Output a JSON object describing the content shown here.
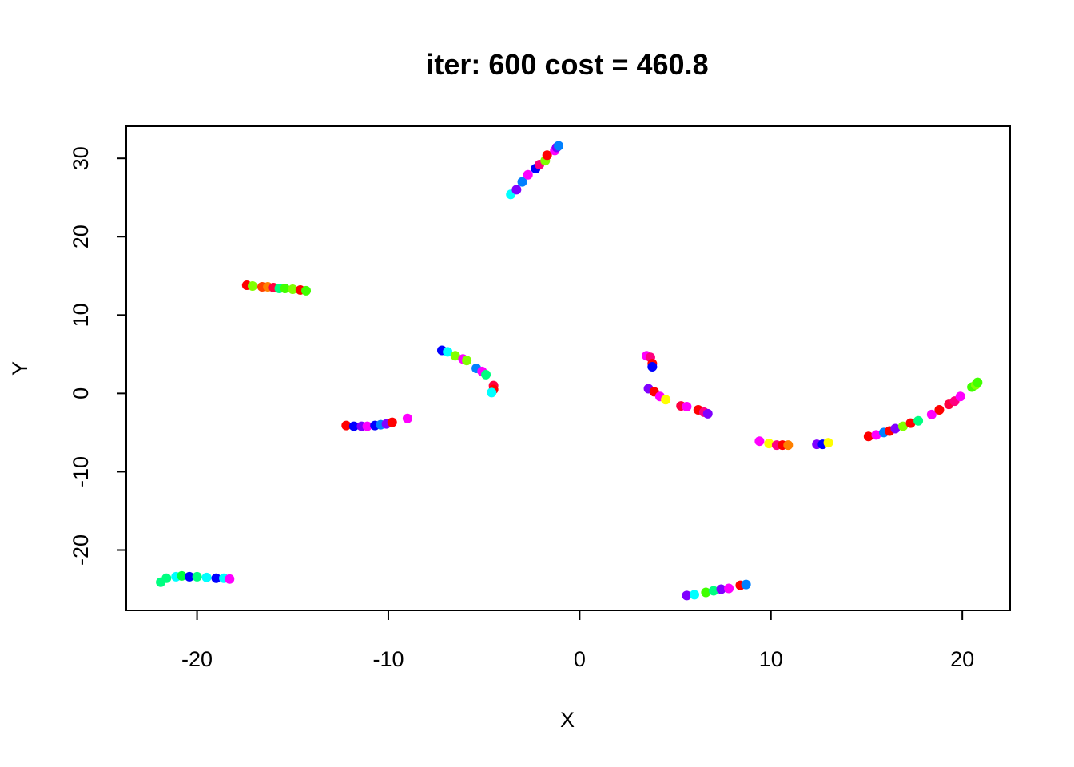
{
  "chart_data": {
    "type": "scatter",
    "title": "iter: 600 cost = 460.8",
    "xlabel": "X",
    "ylabel": "Y",
    "xlim": [
      -23.7,
      22.5
    ],
    "ylim": [
      -27.7,
      34.1
    ],
    "xticks": [
      -20,
      -10,
      0,
      10,
      20
    ],
    "yticks": [
      -20,
      -10,
      0,
      10,
      20,
      30
    ],
    "xtick_labels": [
      "-20",
      "-10",
      "0",
      "10",
      "20"
    ],
    "ytick_labels": [
      "-20",
      "-10",
      "0",
      "10",
      "20",
      "30"
    ],
    "grid": false,
    "legend": "none",
    "points": [
      {
        "x": -3.6,
        "y": 25.4,
        "color": "#00ffff"
      },
      {
        "x": -3.3,
        "y": 26.0,
        "color": "#8000ff"
      },
      {
        "x": -3.0,
        "y": 27.0,
        "color": "#0080ff"
      },
      {
        "x": -2.7,
        "y": 27.9,
        "color": "#ff00ff"
      },
      {
        "x": -2.3,
        "y": 28.7,
        "color": "#0000ff"
      },
      {
        "x": -2.1,
        "y": 29.2,
        "color": "#ff0080"
      },
      {
        "x": -1.8,
        "y": 29.7,
        "color": "#80ff00"
      },
      {
        "x": -1.7,
        "y": 30.4,
        "color": "#ff0000"
      },
      {
        "x": -1.3,
        "y": 31.0,
        "color": "#ff00ff"
      },
      {
        "x": -1.2,
        "y": 31.4,
        "color": "#8000ff"
      },
      {
        "x": -1.1,
        "y": 31.6,
        "color": "#0080ff"
      },
      {
        "x": -17.4,
        "y": 13.8,
        "color": "#ff0000"
      },
      {
        "x": -17.1,
        "y": 13.7,
        "color": "#80ff00"
      },
      {
        "x": -16.6,
        "y": 13.6,
        "color": "#ff4000"
      },
      {
        "x": -16.3,
        "y": 13.6,
        "color": "#ff8000"
      },
      {
        "x": -16.0,
        "y": 13.5,
        "color": "#ff0040"
      },
      {
        "x": -15.7,
        "y": 13.4,
        "color": "#00ff80"
      },
      {
        "x": -15.4,
        "y": 13.4,
        "color": "#40ff00"
      },
      {
        "x": -15.0,
        "y": 13.3,
        "color": "#80ff00"
      },
      {
        "x": -14.6,
        "y": 13.2,
        "color": "#ff0000"
      },
      {
        "x": -14.3,
        "y": 13.1,
        "color": "#40ff00"
      },
      {
        "x": -7.2,
        "y": 5.5,
        "color": "#0000ff"
      },
      {
        "x": -6.9,
        "y": 5.3,
        "color": "#00ffff"
      },
      {
        "x": -6.5,
        "y": 4.8,
        "color": "#80ff00"
      },
      {
        "x": -6.1,
        "y": 4.4,
        "color": "#ff00ff"
      },
      {
        "x": -5.9,
        "y": 4.2,
        "color": "#80ff00"
      },
      {
        "x": -5.4,
        "y": 3.2,
        "color": "#0080ff"
      },
      {
        "x": -5.1,
        "y": 2.8,
        "color": "#ff00ff"
      },
      {
        "x": -4.9,
        "y": 2.4,
        "color": "#00ff80"
      },
      {
        "x": -4.5,
        "y": 1.0,
        "color": "#ff0040"
      },
      {
        "x": -4.5,
        "y": 0.5,
        "color": "#ff0000"
      },
      {
        "x": -4.6,
        "y": 0.1,
        "color": "#00ffff"
      },
      {
        "x": -12.2,
        "y": -4.1,
        "color": "#ff0000"
      },
      {
        "x": -11.8,
        "y": -4.2,
        "color": "#0000ff"
      },
      {
        "x": -11.4,
        "y": -4.2,
        "color": "#8000ff"
      },
      {
        "x": -11.1,
        "y": -4.2,
        "color": "#ff00ff"
      },
      {
        "x": -10.7,
        "y": -4.1,
        "color": "#0000ff"
      },
      {
        "x": -10.4,
        "y": -4.0,
        "color": "#0080ff"
      },
      {
        "x": -10.1,
        "y": -3.9,
        "color": "#8000ff"
      },
      {
        "x": -9.8,
        "y": -3.7,
        "color": "#ff0000"
      },
      {
        "x": -9.0,
        "y": -3.2,
        "color": "#ff00ff"
      },
      {
        "x": 3.5,
        "y": 4.8,
        "color": "#ff00ff"
      },
      {
        "x": 3.7,
        "y": 4.6,
        "color": "#ff0080"
      },
      {
        "x": 3.8,
        "y": 3.8,
        "color": "#ff0000"
      },
      {
        "x": 3.8,
        "y": 3.4,
        "color": "#0000ff"
      },
      {
        "x": 3.6,
        "y": 0.6,
        "color": "#8000ff"
      },
      {
        "x": 3.9,
        "y": 0.2,
        "color": "#ff0000"
      },
      {
        "x": 4.2,
        "y": -0.4,
        "color": "#ff00ff"
      },
      {
        "x": 4.5,
        "y": -0.8,
        "color": "#ffff00"
      },
      {
        "x": 5.3,
        "y": -1.6,
        "color": "#ff0040"
      },
      {
        "x": 5.6,
        "y": -1.7,
        "color": "#ff00ff"
      },
      {
        "x": 6.2,
        "y": -2.1,
        "color": "#ff0000"
      },
      {
        "x": 6.5,
        "y": -2.4,
        "color": "#ff0080"
      },
      {
        "x": 6.7,
        "y": -2.6,
        "color": "#8000ff"
      },
      {
        "x": 9.4,
        "y": -6.1,
        "color": "#ff00ff"
      },
      {
        "x": 9.9,
        "y": -6.4,
        "color": "#ffff00"
      },
      {
        "x": 10.3,
        "y": -6.6,
        "color": "#ff0080"
      },
      {
        "x": 10.6,
        "y": -6.6,
        "color": "#ff0000"
      },
      {
        "x": 10.9,
        "y": -6.6,
        "color": "#ff8000"
      },
      {
        "x": 12.4,
        "y": -6.5,
        "color": "#8000ff"
      },
      {
        "x": 12.7,
        "y": -6.5,
        "color": "#0000ff"
      },
      {
        "x": 13.0,
        "y": -6.3,
        "color": "#ffff00"
      },
      {
        "x": 15.1,
        "y": -5.5,
        "color": "#ff0000"
      },
      {
        "x": 15.5,
        "y": -5.3,
        "color": "#ff00ff"
      },
      {
        "x": 15.9,
        "y": -5.0,
        "color": "#0080ff"
      },
      {
        "x": 16.2,
        "y": -4.8,
        "color": "#ff0000"
      },
      {
        "x": 16.5,
        "y": -4.5,
        "color": "#8000ff"
      },
      {
        "x": 16.9,
        "y": -4.2,
        "color": "#80ff00"
      },
      {
        "x": 17.3,
        "y": -3.8,
        "color": "#ff0000"
      },
      {
        "x": 17.7,
        "y": -3.5,
        "color": "#00ff80"
      },
      {
        "x": 18.4,
        "y": -2.7,
        "color": "#ff00ff"
      },
      {
        "x": 18.8,
        "y": -2.1,
        "color": "#ff0000"
      },
      {
        "x": 19.3,
        "y": -1.4,
        "color": "#ff0040"
      },
      {
        "x": 19.6,
        "y": -1.0,
        "color": "#ff0080"
      },
      {
        "x": 19.9,
        "y": -0.4,
        "color": "#ff00ff"
      },
      {
        "x": 20.5,
        "y": 0.8,
        "color": "#40ff00"
      },
      {
        "x": 20.7,
        "y": 1.1,
        "color": "#80ff00"
      },
      {
        "x": 20.8,
        "y": 1.4,
        "color": "#40ff00"
      },
      {
        "x": -21.9,
        "y": -24.1,
        "color": "#00ff80"
      },
      {
        "x": -21.6,
        "y": -23.6,
        "color": "#00ff80"
      },
      {
        "x": -21.1,
        "y": -23.4,
        "color": "#00ffff"
      },
      {
        "x": -20.8,
        "y": -23.3,
        "color": "#00ff40"
      },
      {
        "x": -20.4,
        "y": -23.4,
        "color": "#0000ff"
      },
      {
        "x": -20.0,
        "y": -23.4,
        "color": "#00ff80"
      },
      {
        "x": -19.5,
        "y": -23.5,
        "color": "#00ffff"
      },
      {
        "x": -19.0,
        "y": -23.6,
        "color": "#0000ff"
      },
      {
        "x": -18.6,
        "y": -23.6,
        "color": "#00ffff"
      },
      {
        "x": -18.3,
        "y": -23.7,
        "color": "#ff00ff"
      },
      {
        "x": 5.6,
        "y": -25.8,
        "color": "#8000ff"
      },
      {
        "x": 6.0,
        "y": -25.7,
        "color": "#00ffff"
      },
      {
        "x": 6.6,
        "y": -25.4,
        "color": "#40ff00"
      },
      {
        "x": 7.0,
        "y": -25.2,
        "color": "#00ff80"
      },
      {
        "x": 7.4,
        "y": -25.0,
        "color": "#8000ff"
      },
      {
        "x": 7.8,
        "y": -24.9,
        "color": "#ff00ff"
      },
      {
        "x": 8.4,
        "y": -24.5,
        "color": "#ff0000"
      },
      {
        "x": 8.7,
        "y": -24.4,
        "color": "#0080ff"
      }
    ]
  }
}
